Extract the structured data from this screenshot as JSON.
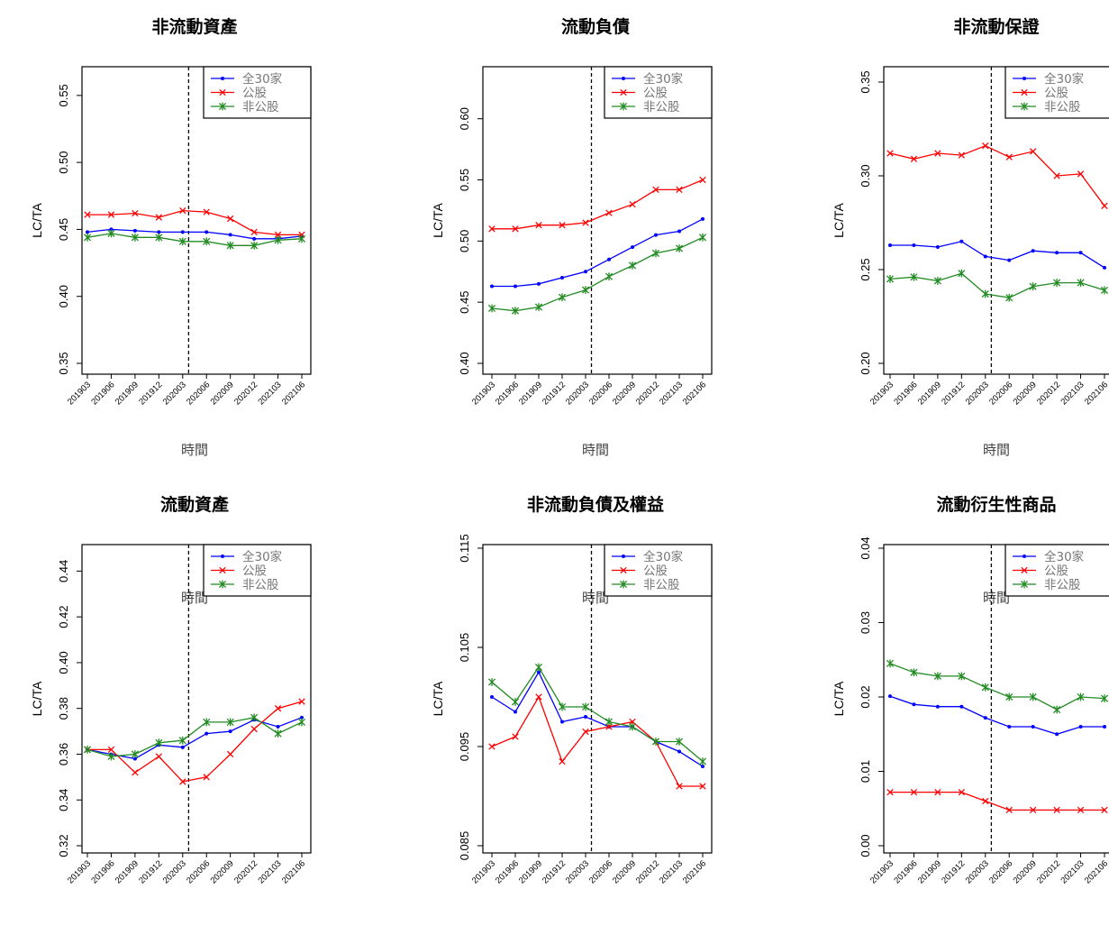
{
  "colors": {
    "all": "#0000ff",
    "public": "#ff0000",
    "nonpublic": "#228b22"
  },
  "chart_data": [
    {
      "type": "line",
      "title": "非流動資產",
      "xlabel": "時間",
      "ylabel": "LC/TA",
      "categories": [
        "201903",
        "201906",
        "201909",
        "201912",
        "202003",
        "202006",
        "202009",
        "202012",
        "202103",
        "202106"
      ],
      "ylim": [
        0.35,
        0.56
      ],
      "yticks": [
        "0.35",
        "0.40",
        "0.45",
        "0.50",
        "0.55"
      ],
      "event_line_x": 4.25,
      "legend_position": "top-right",
      "series": [
        {
          "name": "全30家",
          "values": [
            0.448,
            0.45,
            0.449,
            0.448,
            0.448,
            0.448,
            0.446,
            0.443,
            0.443,
            0.445
          ]
        },
        {
          "name": "公股",
          "values": [
            0.461,
            0.461,
            0.462,
            0.459,
            0.464,
            0.463,
            0.458,
            0.448,
            0.446,
            0.446
          ]
        },
        {
          "name": "非公股",
          "values": [
            0.444,
            0.447,
            0.444,
            0.444,
            0.441,
            0.441,
            0.438,
            0.438,
            0.442,
            0.443
          ]
        }
      ]
    },
    {
      "type": "line",
      "title": "流動負債",
      "xlabel": "時間",
      "ylabel": "LC/TA",
      "categories": [
        "201903",
        "201906",
        "201909",
        "201912",
        "202003",
        "202006",
        "202009",
        "202012",
        "202103",
        "202106"
      ],
      "ylim": [
        0.4,
        0.63
      ],
      "yticks": [
        "0.40",
        "0.45",
        "0.50",
        "0.55",
        "0.60"
      ],
      "event_line_x": 4.25,
      "legend_position": "top-right",
      "series": [
        {
          "name": "全30家",
          "values": [
            0.463,
            0.463,
            0.465,
            0.47,
            0.475,
            0.485,
            0.495,
            0.505,
            0.508,
            0.518
          ]
        },
        {
          "name": "公股",
          "values": [
            0.51,
            0.51,
            0.513,
            0.513,
            0.515,
            0.523,
            0.53,
            0.542,
            0.542,
            0.55
          ]
        },
        {
          "name": "非公股",
          "values": [
            0.445,
            0.443,
            0.446,
            0.454,
            0.46,
            0.471,
            0.48,
            0.49,
            0.494,
            0.503
          ]
        }
      ]
    },
    {
      "type": "line",
      "title": "非流動保證",
      "xlabel": "時間",
      "ylabel": "LC/TA",
      "categories": [
        "201903",
        "201906",
        "201909",
        "201912",
        "202003",
        "202006",
        "202009",
        "202012",
        "202103",
        "202106"
      ],
      "ylim": [
        0.2,
        0.35
      ],
      "yticks": [
        "0.20",
        "0.25",
        "0.30",
        "0.35"
      ],
      "event_line_x": 4.25,
      "legend_position": "top-right",
      "series": [
        {
          "name": "全30家",
          "values": [
            0.263,
            0.263,
            0.262,
            0.265,
            0.257,
            0.255,
            0.26,
            0.259,
            0.259,
            0.251
          ]
        },
        {
          "name": "公股",
          "values": [
            0.312,
            0.309,
            0.312,
            0.311,
            0.316,
            0.31,
            0.313,
            0.3,
            0.301,
            0.284
          ]
        },
        {
          "name": "非公股",
          "values": [
            0.245,
            0.246,
            0.244,
            0.248,
            0.237,
            0.235,
            0.241,
            0.243,
            0.243,
            0.239
          ]
        }
      ]
    },
    {
      "type": "line",
      "title": "流動資產",
      "xlabel": "時間",
      "ylabel": "LC/TA",
      "categories": [
        "201903",
        "201906",
        "201909",
        "201912",
        "202003",
        "202006",
        "202009",
        "202012",
        "202103",
        "202106"
      ],
      "ylim": [
        0.32,
        0.45
      ],
      "yticks": [
        "0.32",
        "0.34",
        "0.36",
        "0.38",
        "0.40",
        "0.42",
        "0.44"
      ],
      "event_line_x": 4.25,
      "legend_position": "top-right",
      "series": [
        {
          "name": "全30家",
          "values": [
            0.362,
            0.36,
            0.358,
            0.364,
            0.363,
            0.369,
            0.37,
            0.375,
            0.372,
            0.376
          ]
        },
        {
          "name": "公股",
          "values": [
            0.362,
            0.362,
            0.352,
            0.359,
            0.348,
            0.35,
            0.36,
            0.371,
            0.38,
            0.383
          ]
        },
        {
          "name": "非公股",
          "values": [
            0.362,
            0.359,
            0.36,
            0.365,
            0.366,
            0.374,
            0.374,
            0.376,
            0.369,
            0.374
          ]
        }
      ]
    },
    {
      "type": "line",
      "title": "非流動負債及權益",
      "xlabel": "時間",
      "ylabel": "LC/TA",
      "categories": [
        "201903",
        "201906",
        "201909",
        "201912",
        "202003",
        "202006",
        "202009",
        "202012",
        "202103",
        "202106"
      ],
      "ylim": [
        0.085,
        0.115
      ],
      "yticks": [
        "0.085",
        "0.095",
        "0.105",
        "0.115"
      ],
      "event_line_x": 4.25,
      "legend_position": "top-right",
      "series": [
        {
          "name": "全30家",
          "values": [
            0.1,
            0.0985,
            0.1025,
            0.0975,
            0.098,
            0.097,
            0.097,
            0.0955,
            0.0945,
            0.093
          ]
        },
        {
          "name": "公股",
          "values": [
            0.095,
            0.096,
            0.1,
            0.0935,
            0.0965,
            0.097,
            0.0975,
            0.0955,
            0.091,
            0.091
          ]
        },
        {
          "name": "非公股",
          "values": [
            0.1015,
            0.0995,
            0.103,
            0.099,
            0.099,
            0.0975,
            0.097,
            0.0955,
            0.0955,
            0.0935
          ]
        }
      ]
    },
    {
      "type": "line",
      "title": "流動衍生性商品",
      "xlabel": "時間",
      "ylabel": "LC/TA",
      "categories": [
        "201903",
        "201906",
        "201909",
        "201912",
        "202003",
        "202006",
        "202009",
        "202012",
        "202103",
        "202106"
      ],
      "ylim": [
        0.0,
        0.04
      ],
      "yticks": [
        "0.00",
        "0.01",
        "0.02",
        "0.03",
        "0.04"
      ],
      "event_line_x": 4.25,
      "legend_position": "top-right",
      "series": [
        {
          "name": "全30家",
          "values": [
            0.0201,
            0.019,
            0.0187,
            0.0187,
            0.0172,
            0.016,
            0.016,
            0.015,
            0.016,
            0.016
          ]
        },
        {
          "name": "公股",
          "values": [
            0.0072,
            0.0072,
            0.0072,
            0.0072,
            0.006,
            0.0048,
            0.0048,
            0.0048,
            0.0048,
            0.0048
          ]
        },
        {
          "name": "非公股",
          "values": [
            0.0245,
            0.0233,
            0.0228,
            0.0228,
            0.0213,
            0.02,
            0.02,
            0.0183,
            0.02,
            0.0198
          ]
        }
      ]
    }
  ]
}
